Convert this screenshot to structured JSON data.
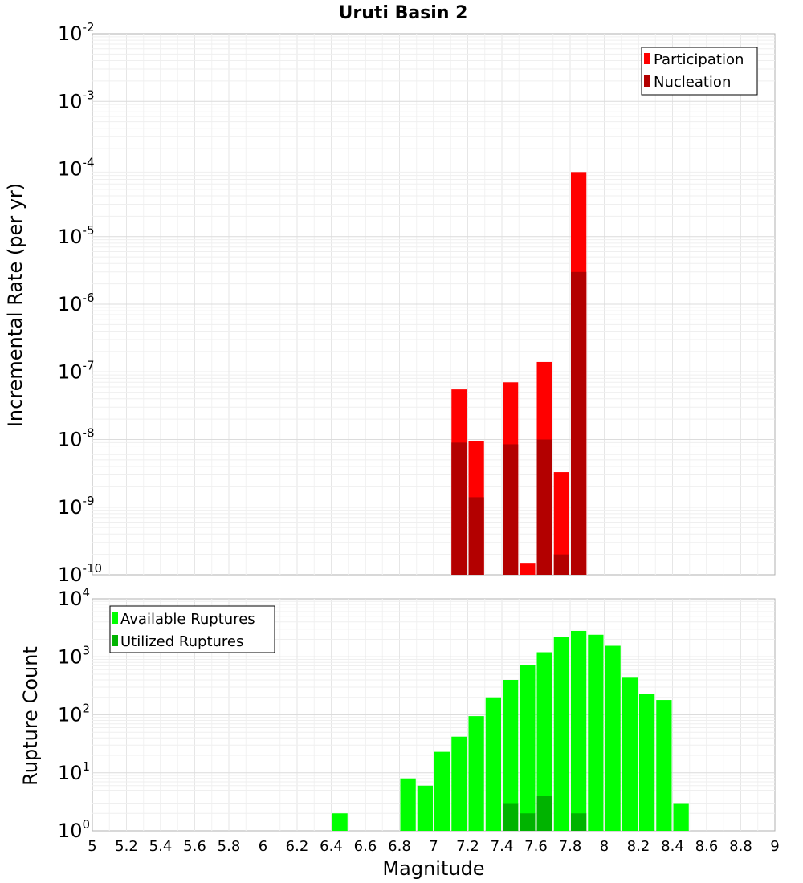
{
  "chart_data": [
    {
      "type": "bar",
      "title": "Uruti Basin 2",
      "xlabel": "",
      "ylabel": "Incremental Rate (per yr)",
      "yscale": "log",
      "ylim_exp": [
        -10,
        -2
      ],
      "xlim": [
        5,
        9
      ],
      "bin_width": 0.1,
      "legend": {
        "placement": "top-right",
        "entries": [
          "Participation",
          "Nucleation"
        ]
      },
      "colors": {
        "Participation": "#ff0000",
        "Nucleation": "#b30000"
      },
      "series": [
        {
          "name": "Participation",
          "x": [
            7.15,
            7.25,
            7.45,
            7.55,
            7.65,
            7.75,
            7.85
          ],
          "values": [
            5.5e-08,
            9.5e-09,
            7e-08,
            1.5e-10,
            1.4e-07,
            3.3e-09,
            9e-05
          ]
        },
        {
          "name": "Nucleation",
          "x": [
            7.15,
            7.25,
            7.45,
            7.55,
            7.65,
            7.75,
            7.85
          ],
          "values": [
            9e-09,
            1.4e-09,
            8.5e-09,
            0,
            1e-08,
            2e-10,
            3e-06
          ]
        }
      ]
    },
    {
      "type": "bar",
      "title": "",
      "xlabel": "Magnitude",
      "ylabel": "Rupture Count",
      "yscale": "log",
      "ylim_exp": [
        0,
        4
      ],
      "xlim": [
        5,
        9
      ],
      "bin_width": 0.1,
      "x_ticks": [
        "5",
        "5.2",
        "5.4",
        "5.6",
        "5.8",
        "6",
        "6.2",
        "6.4",
        "6.6",
        "6.8",
        "7",
        "7.2",
        "7.4",
        "7.6",
        "7.8",
        "8",
        "8.2",
        "8.4",
        "8.6",
        "8.8",
        "9"
      ],
      "legend": {
        "placement": "top-left",
        "entries": [
          "Available Ruptures",
          "Utilized Ruptures"
        ]
      },
      "colors": {
        "Available Ruptures": "#00ff00",
        "Utilized Ruptures": "#00b300"
      },
      "series": [
        {
          "name": "Available Ruptures",
          "x": [
            6.45,
            6.55,
            6.85,
            6.95,
            7.05,
            7.15,
            7.25,
            7.35,
            7.45,
            7.55,
            7.65,
            7.75,
            7.85,
            7.95,
            8.05,
            8.15,
            8.25,
            8.35,
            8.45
          ],
          "values": [
            2,
            1,
            8,
            6,
            23,
            42,
            95,
            200,
            400,
            720,
            1200,
            2200,
            2800,
            2400,
            1550,
            450,
            230,
            180,
            3
          ]
        },
        {
          "name": "Utilized Ruptures",
          "x": [
            7.15,
            7.25,
            7.35,
            7.45,
            7.55,
            7.65,
            7.75,
            7.85
          ],
          "values": [
            1,
            1,
            1,
            3,
            2,
            4,
            1,
            2
          ]
        }
      ]
    }
  ]
}
